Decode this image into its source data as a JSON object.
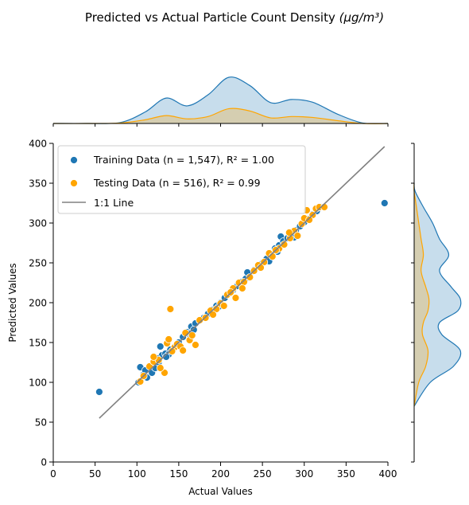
{
  "chart_data": {
    "type": "scatter",
    "title": "Predicted vs Actual Particle Count Density",
    "title_unit": "(μg/m³)",
    "xlabel": "Actual Values",
    "ylabel": "Predicted Values",
    "xlim": [
      0,
      400
    ],
    "ylim": [
      0,
      400
    ],
    "xticks": [
      0,
      50,
      100,
      150,
      200,
      250,
      300,
      350,
      400
    ],
    "yticks": [
      0,
      50,
      100,
      150,
      200,
      250,
      300,
      350,
      400
    ],
    "grid": false,
    "legend_position": "upper-left",
    "series": [
      {
        "name": "Training Data (n = 1,547), R² = 1.00",
        "color": "#1f77b4",
        "points": [
          [
            55,
            88
          ],
          [
            396,
            325
          ],
          [
            104,
            119
          ],
          [
            108,
            110
          ],
          [
            112,
            106
          ],
          [
            118,
            112
          ],
          [
            122,
            118
          ],
          [
            126,
            125
          ],
          [
            130,
            134
          ],
          [
            134,
            136
          ],
          [
            128,
            145
          ],
          [
            140,
            141
          ],
          [
            145,
            144
          ],
          [
            150,
            150
          ],
          [
            155,
            157
          ],
          [
            160,
            163
          ],
          [
            165,
            170
          ],
          [
            170,
            174
          ],
          [
            175,
            178
          ],
          [
            180,
            181
          ],
          [
            185,
            186
          ],
          [
            190,
            191
          ],
          [
            195,
            196
          ],
          [
            200,
            200
          ],
          [
            205,
            206
          ],
          [
            210,
            211
          ],
          [
            215,
            216
          ],
          [
            220,
            221
          ],
          [
            225,
            226
          ],
          [
            230,
            230
          ],
          [
            235,
            236
          ],
          [
            240,
            241
          ],
          [
            245,
            246
          ],
          [
            250,
            250
          ],
          [
            255,
            255
          ],
          [
            260,
            262
          ],
          [
            265,
            268
          ],
          [
            270,
            272
          ],
          [
            272,
            283
          ],
          [
            275,
            277
          ],
          [
            280,
            281
          ],
          [
            285,
            286
          ],
          [
            290,
            291
          ],
          [
            295,
            296
          ],
          [
            300,
            301
          ],
          [
            305,
            305
          ],
          [
            310,
            311
          ],
          [
            315,
            315
          ],
          [
            320,
            320
          ],
          [
            124,
            130
          ],
          [
            138,
            135
          ],
          [
            162,
            161
          ],
          [
            198,
            195
          ],
          [
            232,
            238
          ],
          [
            258,
            252
          ],
          [
            288,
            282
          ],
          [
            102,
            100
          ],
          [
            110,
            115
          ],
          [
            135,
            132
          ],
          [
            168,
            166
          ],
          [
            212,
            213
          ],
          [
            248,
            248
          ],
          [
            268,
            264
          ]
        ]
      },
      {
        "name": "Testing Data (n = 516), R² = 0.99",
        "color": "#ffa500",
        "points": [
          [
            140,
            192
          ],
          [
            104,
            101
          ],
          [
            108,
            108
          ],
          [
            115,
            120
          ],
          [
            120,
            126
          ],
          [
            126,
            128
          ],
          [
            133,
            112
          ],
          [
            136,
            149
          ],
          [
            138,
            154
          ],
          [
            145,
            144
          ],
          [
            148,
            148
          ],
          [
            152,
            145
          ],
          [
            155,
            140
          ],
          [
            158,
            162
          ],
          [
            163,
            153
          ],
          [
            170,
            147
          ],
          [
            175,
            178
          ],
          [
            182,
            181
          ],
          [
            188,
            190
          ],
          [
            195,
            192
          ],
          [
            200,
            199
          ],
          [
            208,
            210
          ],
          [
            215,
            218
          ],
          [
            218,
            206
          ],
          [
            222,
            225
          ],
          [
            228,
            226
          ],
          [
            235,
            232
          ],
          [
            240,
            240
          ],
          [
            245,
            247
          ],
          [
            252,
            251
          ],
          [
            258,
            262
          ],
          [
            262,
            258
          ],
          [
            270,
            268
          ],
          [
            276,
            273
          ],
          [
            283,
            281
          ],
          [
            288,
            290
          ],
          [
            292,
            284
          ],
          [
            297,
            299
          ],
          [
            300,
            306
          ],
          [
            303,
            316
          ],
          [
            310,
            310
          ],
          [
            314,
            318
          ],
          [
            318,
            320
          ],
          [
            324,
            320
          ],
          [
            120,
            132
          ],
          [
            128,
            118
          ],
          [
            142,
            139
          ],
          [
            166,
            159
          ],
          [
            191,
            185
          ],
          [
            204,
            196
          ],
          [
            212,
            213
          ],
          [
            226,
            218
          ],
          [
            248,
            244
          ],
          [
            266,
            266
          ],
          [
            282,
            288
          ],
          [
            306,
            304
          ]
        ]
      },
      {
        "name": "1:1 Line",
        "type": "line",
        "color": "#808080",
        "points": [
          [
            55,
            55
          ],
          [
            396,
            396
          ]
        ]
      }
    ],
    "marginal_top": {
      "x": [
        0,
        40,
        80,
        110,
        135,
        160,
        185,
        210,
        235,
        260,
        285,
        310,
        340,
        370,
        400
      ],
      "training_density": [
        0,
        0,
        0.02,
        0.25,
        0.55,
        0.38,
        0.62,
        1.0,
        0.82,
        0.45,
        0.52,
        0.46,
        0.2,
        0.01,
        0
      ],
      "testing_density": [
        0,
        0,
        0.01,
        0.08,
        0.17,
        0.1,
        0.15,
        0.32,
        0.27,
        0.12,
        0.15,
        0.13,
        0.06,
        0,
        0
      ]
    },
    "marginal_right": {
      "y": [
        70,
        100,
        120,
        140,
        160,
        175,
        190,
        205,
        220,
        240,
        260,
        280,
        300,
        320,
        340,
        350
      ],
      "training_density": [
        0,
        0.35,
        0.85,
        1.0,
        0.6,
        0.55,
        0.95,
        1.0,
        0.8,
        0.55,
        0.75,
        0.55,
        0.4,
        0.2,
        0.02,
        0
      ],
      "testing_density": [
        0,
        0.1,
        0.25,
        0.3,
        0.18,
        0.2,
        0.3,
        0.32,
        0.25,
        0.15,
        0.2,
        0.15,
        0.1,
        0.05,
        0,
        0
      ]
    }
  }
}
